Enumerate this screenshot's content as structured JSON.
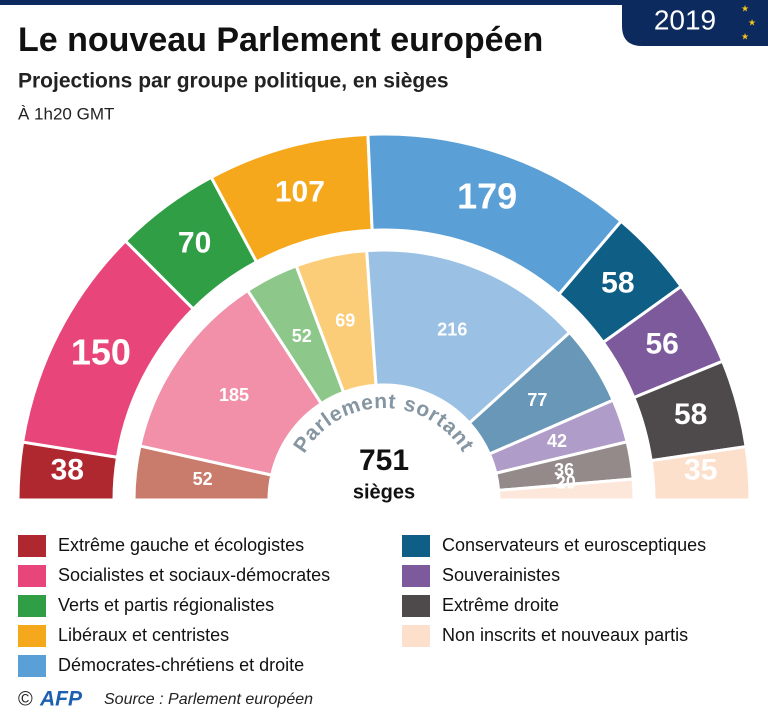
{
  "header": {
    "title": "Le nouveau Parlement européen",
    "subtitle": "Projections par groupe politique, en sièges",
    "note": "À 1h20 GMT",
    "badge": "2019"
  },
  "chart_data": {
    "type": "parliament",
    "categories": [
      "Extrême gauche et écologistes",
      "Socialistes et sociaux-démocrates",
      "Verts et partis régionalistes",
      "Libéraux et centristes",
      "Démocrates-chrétiens et droite",
      "Conservateurs et eurosceptiques",
      "Souverainistes",
      "Extrême droite",
      "Non inscrits et nouveaux partis"
    ],
    "series": [
      {
        "values": [
          38,
          150,
          70,
          107,
          179,
          58,
          56,
          58,
          35
        ],
        "colors": [
          "#b0282f",
          "#e8457a",
          "#2f9e44",
          "#f5a81c",
          "#5a9fd6",
          "#0e5e85",
          "#7d5a9c",
          "#4e4a4c",
          "#fde0cc"
        ]
      },
      {
        "name": "Parlement sortant",
        "values": [
          52,
          185,
          52,
          69,
          216,
          77,
          42,
          36,
          20
        ],
        "colors": [
          "#c97c6c",
          "#f190a8",
          "#8dc78a",
          "#fbcd78",
          "#9ac0e4",
          "#6897b8",
          "#b09cc8",
          "#958a8a",
          "#fde7db"
        ]
      }
    ],
    "total": 751,
    "total_label": "sièges"
  },
  "footer": {
    "copyright": "©",
    "agency": "AFP",
    "source": "Source : Parlement européen"
  }
}
